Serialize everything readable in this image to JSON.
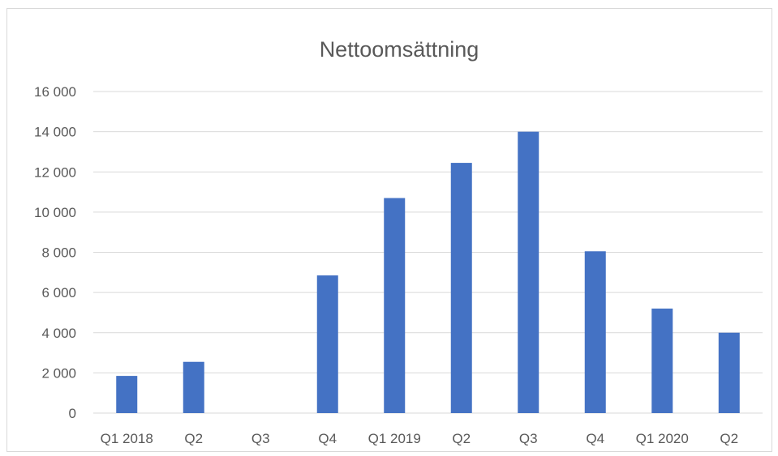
{
  "chart_data": {
    "type": "bar",
    "title": "Nettoomsättning",
    "categories": [
      "Q1 2018",
      "Q2",
      "Q3",
      "Q4",
      "Q1 2019",
      "Q2",
      "Q3",
      "Q4",
      "Q1 2020",
      "Q2"
    ],
    "values": [
      1850,
      2550,
      0,
      6850,
      10700,
      12450,
      14000,
      8050,
      5200,
      4000
    ],
    "ylim": [
      0,
      16000
    ],
    "yticks": [
      0,
      2000,
      4000,
      6000,
      8000,
      10000,
      12000,
      14000,
      16000
    ],
    "ytick_labels": [
      "0",
      "2 000",
      "4 000",
      "6 000",
      "8 000",
      "10 000",
      "12 000",
      "14 000",
      "16 000"
    ],
    "grid": true,
    "legend": "none",
    "colors": {
      "bar": "#4472C4",
      "grid": "#d9d9d9",
      "text": "#595959"
    }
  }
}
